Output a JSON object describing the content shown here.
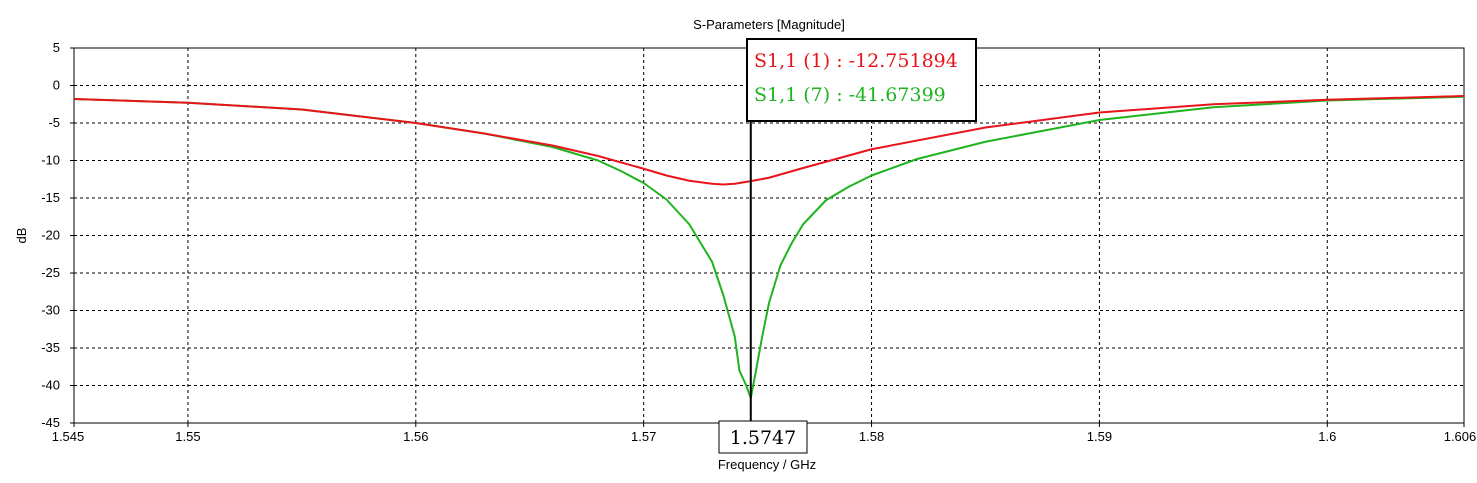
{
  "chart_data": {
    "type": "line",
    "title": "S-Parameters [Magnitude]",
    "xlabel": "Frequency / GHz",
    "ylabel": "dB",
    "xlim": [
      1.545,
      1.606
    ],
    "ylim": [
      -45,
      5
    ],
    "grid": true,
    "x_ticks": [
      "1.545",
      "1.55",
      "1.56",
      "1.57",
      "1.58",
      "1.59",
      "1.6",
      "1.606"
    ],
    "y_ticks": [
      "5",
      "0",
      "-5",
      "-10",
      "-15",
      "-20",
      "-25",
      "-30",
      "-35",
      "-40",
      "-45"
    ],
    "series": [
      {
        "name": "S1,1 (1)",
        "color": "#e8141b",
        "x": [
          1.545,
          1.55,
          1.555,
          1.56,
          1.563,
          1.566,
          1.568,
          1.57,
          1.571,
          1.572,
          1.573,
          1.5735,
          1.574,
          1.5747,
          1.5755,
          1.577,
          1.58,
          1.585,
          1.59,
          1.595,
          1.6,
          1.606
        ],
        "y": [
          -1.8,
          -2.3,
          -3.2,
          -5.0,
          -6.4,
          -8.0,
          -9.4,
          -11.1,
          -12.0,
          -12.7,
          -13.1,
          -13.2,
          -13.1,
          -12.75,
          -12.3,
          -11.0,
          -8.5,
          -5.6,
          -3.6,
          -2.5,
          -1.9,
          -1.4
        ]
      },
      {
        "name": "S1,1 (7)",
        "color": "#1fb41f",
        "x": [
          1.545,
          1.55,
          1.555,
          1.56,
          1.563,
          1.566,
          1.568,
          1.569,
          1.57,
          1.571,
          1.572,
          1.573,
          1.5735,
          1.574,
          1.5742,
          1.5745,
          1.5747,
          1.5749,
          1.5752,
          1.5755,
          1.576,
          1.5765,
          1.577,
          1.578,
          1.579,
          1.58,
          1.582,
          1.585,
          1.59,
          1.595,
          1.6,
          1.606
        ],
        "y": [
          -1.8,
          -2.3,
          -3.2,
          -5.0,
          -6.4,
          -8.2,
          -10.0,
          -11.4,
          -13.0,
          -15.2,
          -18.5,
          -23.5,
          -28.0,
          -33.5,
          -38.0,
          -40.0,
          -41.67,
          -38.5,
          -33.5,
          -29.0,
          -24.0,
          -21.0,
          -18.5,
          -15.3,
          -13.5,
          -12.0,
          -9.8,
          -7.5,
          -4.6,
          -2.9,
          -2.0,
          -1.5
        ]
      }
    ],
    "marker": {
      "x_label": "1.5747",
      "x": 1.5747,
      "readouts": [
        {
          "text": "S1,1 (1) : -12.751894",
          "color": "#e8141b"
        },
        {
          "text": "S1,1 (7) : -41.67399",
          "color": "#1fb41f"
        }
      ]
    }
  }
}
